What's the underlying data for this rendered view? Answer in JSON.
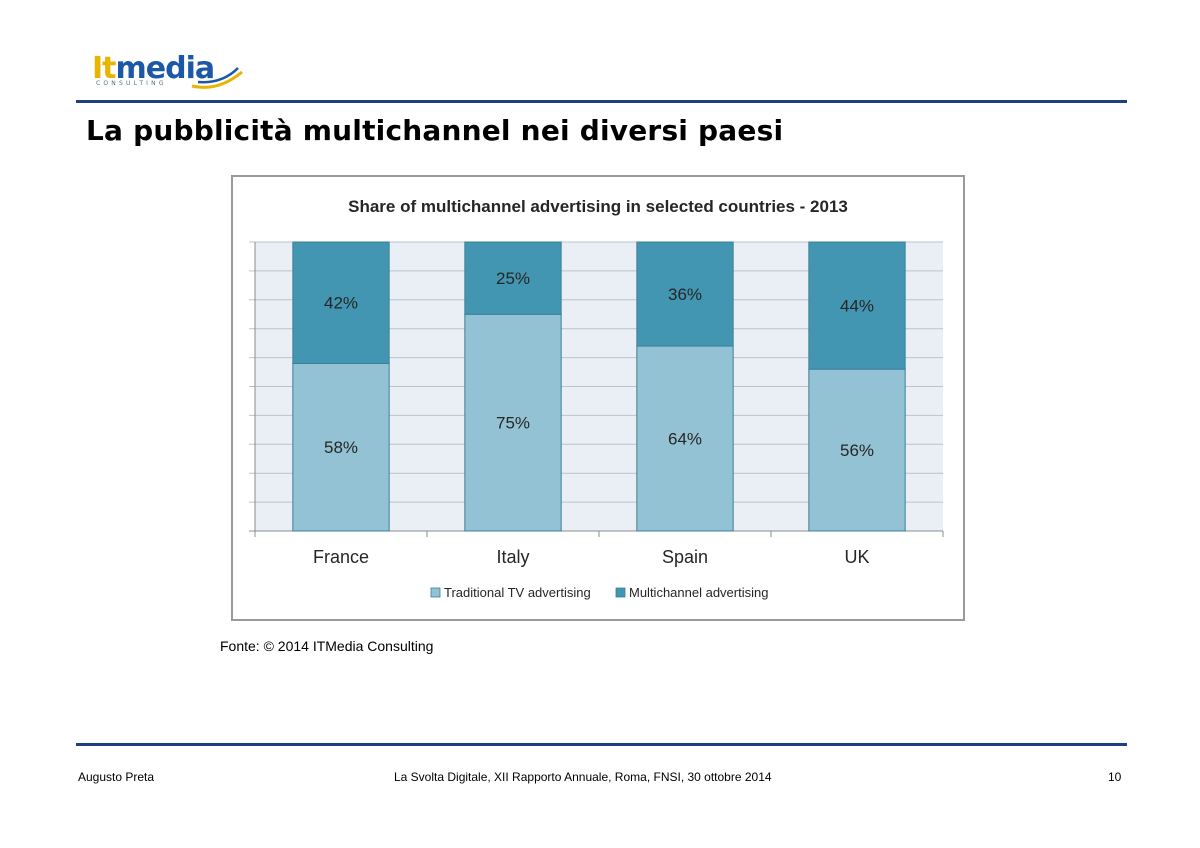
{
  "logo": {
    "part_it": "It",
    "part_media": "media",
    "subtitle": "CONSULTING"
  },
  "page": {
    "title": "La pubblicità multichannel nei diversi paesi",
    "source": "Fonte: © 2014 ITMedia Consulting"
  },
  "footer": {
    "author": "Augusto Preta",
    "event": "La Svolta Digitale, XII Rapporto Annuale, Roma, FNSI, 30 ottobre 2014",
    "page_number": "10"
  },
  "colors": {
    "traditional": "#93c2d4",
    "multichannel": "#4296b1",
    "rule": "#1e3f80",
    "plot_bg": "#e9eff5"
  },
  "chart_data": {
    "type": "bar",
    "stacked": true,
    "title": "Share of multichannel advertising in selected countries - 2013",
    "categories": [
      "France",
      "Italy",
      "Spain",
      "UK"
    ],
    "series": [
      {
        "name": "Traditional TV advertising",
        "values": [
          58,
          75,
          64,
          56
        ],
        "labels": [
          "58%",
          "75%",
          "64%",
          "56%"
        ]
      },
      {
        "name": "Multichannel advertising",
        "values": [
          42,
          25,
          36,
          44
        ],
        "labels": [
          "42%",
          "25%",
          "36%",
          "44%"
        ]
      }
    ],
    "ylim": [
      0,
      100
    ],
    "grid": true,
    "legend": "bottom"
  }
}
